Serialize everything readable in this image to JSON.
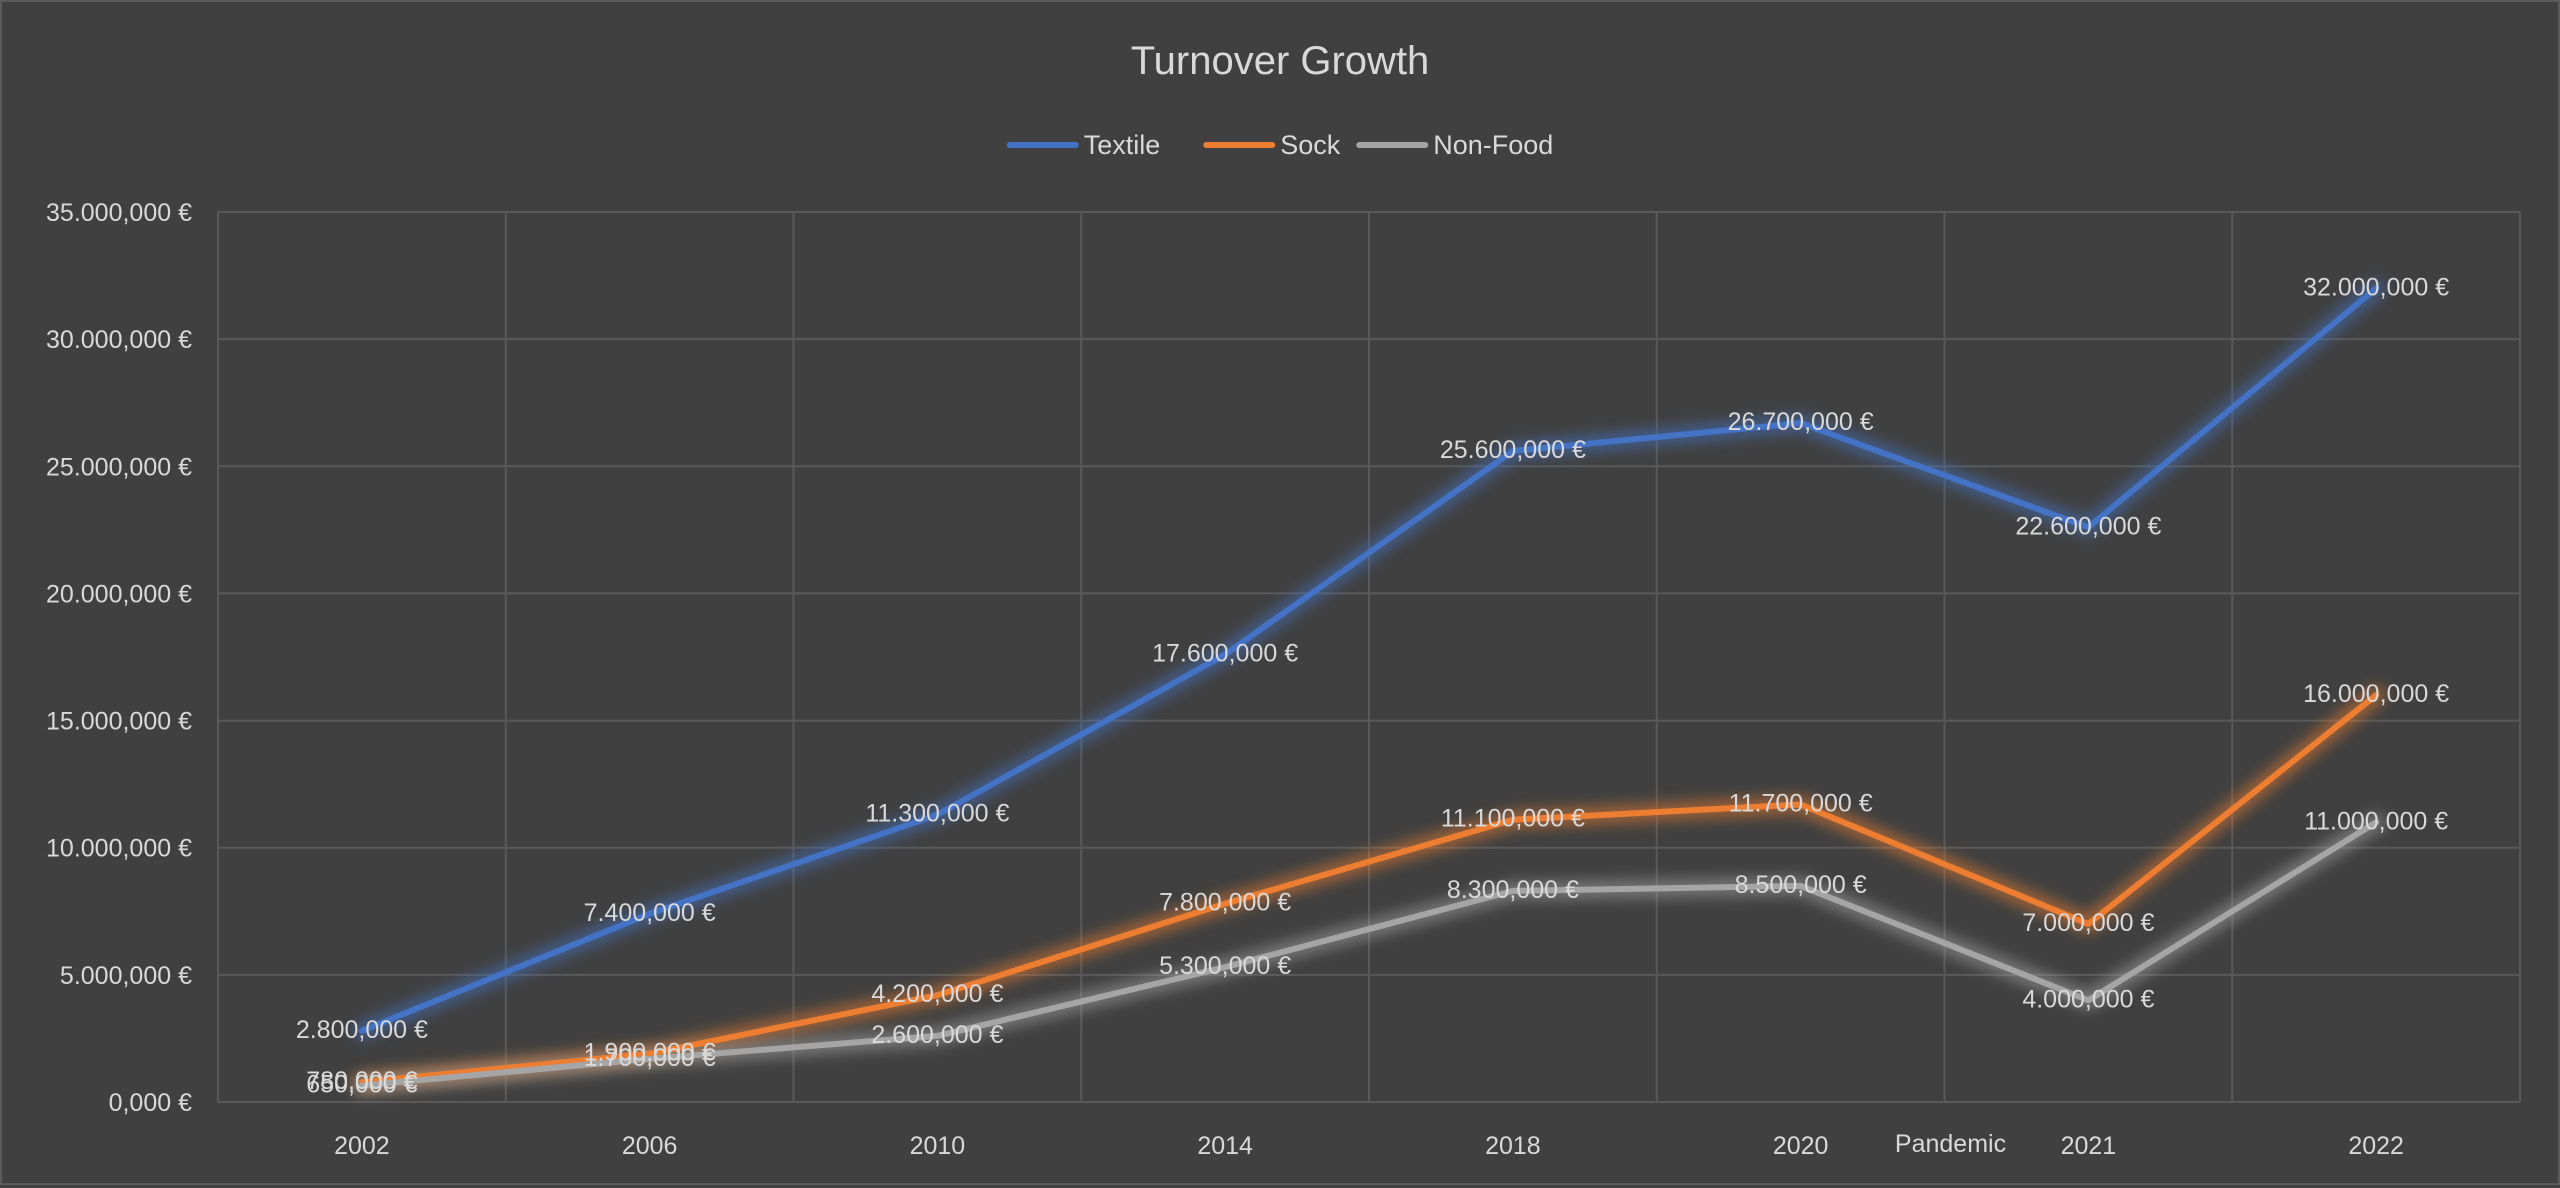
{
  "chart_data": {
    "type": "line",
    "title": "Turnover Growth",
    "xlabel": "",
    "ylabel": "",
    "categories": [
      "2002",
      "2006",
      "2010",
      "2014",
      "2018",
      "2020",
      "2021",
      "2022"
    ],
    "ylim": [
      0,
      35000000
    ],
    "yticks": [
      0,
      5000000,
      10000000,
      15000000,
      20000000,
      25000000,
      30000000,
      35000000
    ],
    "ytick_labels": [
      "0,000 €",
      "5.000,000 €",
      "10.000,000 €",
      "15.000,000 €",
      "20.000,000 €",
      "25.000,000 €",
      "30.000,000 €",
      "35.000,000 €"
    ],
    "grid": true,
    "legend_position": "top-center",
    "annotations": [
      {
        "text": "Pandemic",
        "between": [
          "2020",
          "2021"
        ]
      }
    ],
    "series": [
      {
        "name": "Textile",
        "color": "#4472c4",
        "values": [
          2800000,
          7400000,
          11300000,
          17600000,
          25600000,
          26700000,
          22600000,
          32000000
        ],
        "labels": [
          "2.800,000 €",
          "7.400,000 €",
          "11.300,000 €",
          "17.600,000 €",
          "25.600,000 €",
          "26.700,000 €",
          "22.600,000 €",
          "32.000,000 €"
        ]
      },
      {
        "name": "Sock",
        "color": "#ed7d31",
        "values": [
          780000,
          1900000,
          4200000,
          7800000,
          11100000,
          11700000,
          7000000,
          16000000
        ],
        "labels": [
          "780,000 €",
          "1.900,000 €",
          "4.200,000 €",
          "7.800,000 €",
          "11.100,000 €",
          "11.700,000 €",
          "7.000,000 €",
          "16.000,000 €"
        ]
      },
      {
        "name": "Non-Food",
        "color": "#a5a5a5",
        "values": [
          650000,
          1700000,
          2600000,
          5300000,
          8300000,
          8500000,
          4000000,
          11000000
        ],
        "labels": [
          "650,000 €",
          "1.700,000 €",
          "2.600,000 €",
          "5.300,000 €",
          "8.300,000 €",
          "8.500,000 €",
          "4.000,000 €",
          "11.000,000 €"
        ]
      }
    ]
  }
}
